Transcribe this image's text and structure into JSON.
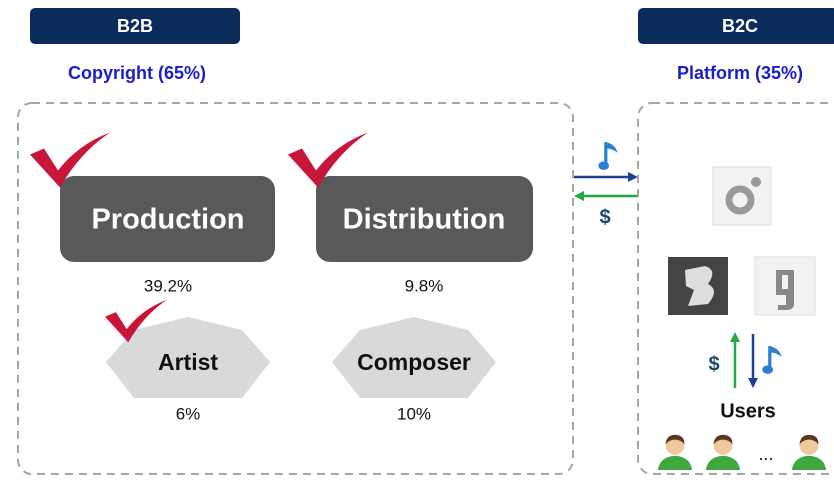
{
  "left": {
    "banner": "B2B",
    "subtitle": "Copyright (65%)",
    "boxes": [
      {
        "label": "Production",
        "share": "39.2%"
      },
      {
        "label": "Distribution",
        "share": "9.8%"
      }
    ],
    "groups": [
      {
        "label": "Artist",
        "share": "6%"
      },
      {
        "label": "Composer",
        "share": "10%"
      }
    ]
  },
  "middle": {
    "money": "$"
  },
  "right": {
    "banner": "B2C",
    "subtitle": "Platform (35%)",
    "money": "$",
    "users": "Users",
    "more": "..."
  }
}
